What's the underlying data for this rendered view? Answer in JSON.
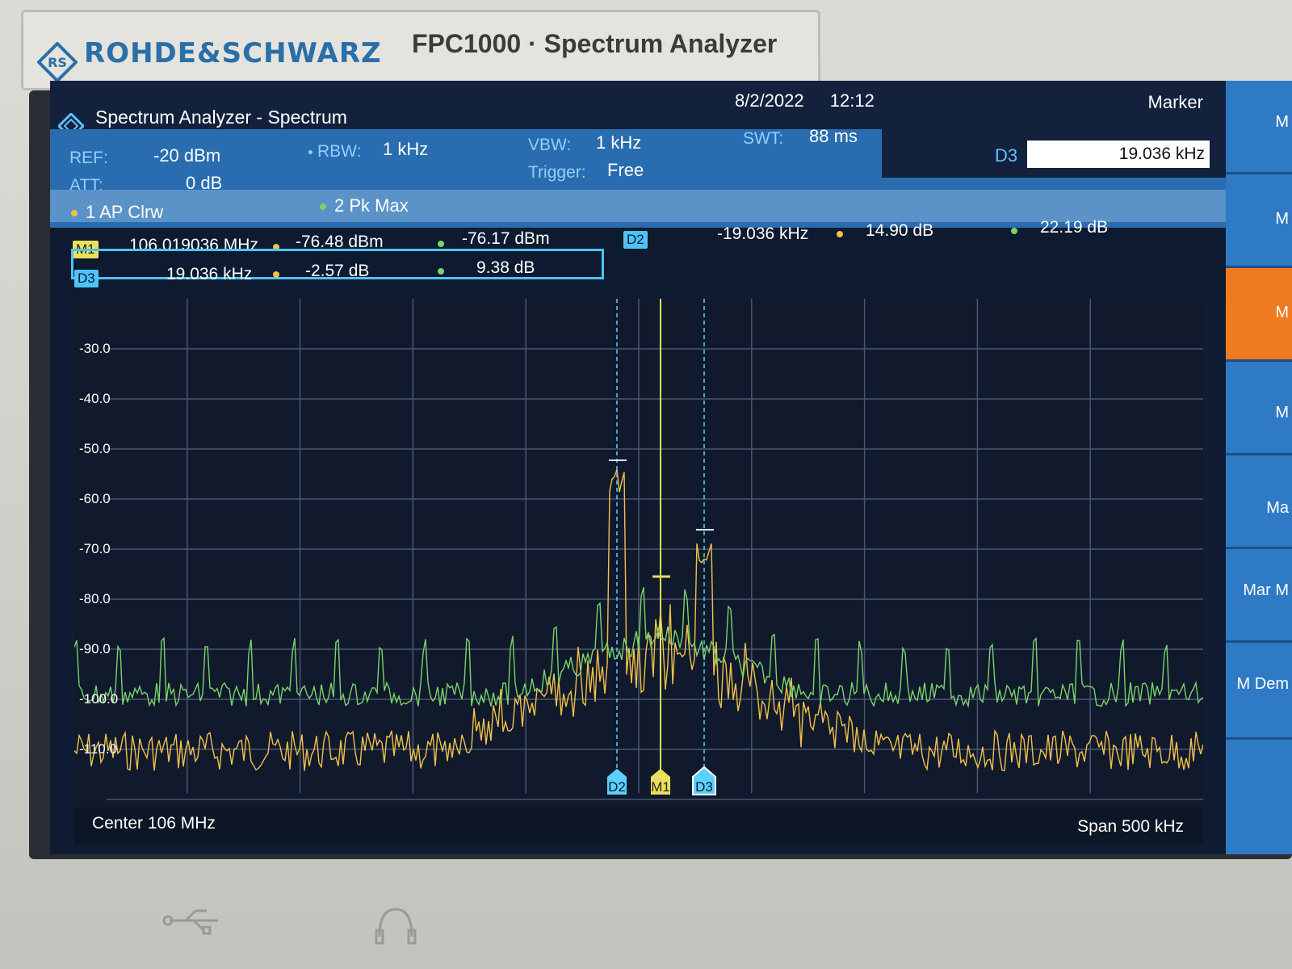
{
  "brand": {
    "name": "ROHDE&SCHWARZ",
    "model": "FPC1000 · Spectrum Analyzer"
  },
  "app": {
    "title": "Spectrum Analyzer - Spectrum",
    "date": "8/2/2022",
    "time": "12:12"
  },
  "params": {
    "ref_label": "REF:",
    "ref_value": "-20 dBm",
    "att_label": "ATT:",
    "att_value": "0 dB",
    "rbw_label": "RBW:",
    "rbw_value": "1 kHz",
    "vbw_label": "VBW:",
    "vbw_value": "1 kHz",
    "trigger_label": "Trigger:",
    "trigger_value": "Free",
    "swt_label": "SWT:",
    "swt_value": "88 ms"
  },
  "traces": [
    {
      "label": "1 AP Clrw",
      "color": "#f2c14a"
    },
    {
      "label": "2 Pk Max",
      "color": "#7ad36a"
    }
  ],
  "marker_panel": {
    "title": "Marker",
    "d3_label": "D3",
    "d3_value": "19.036 kHz"
  },
  "markers": [
    {
      "tag": "M1",
      "freq": "106.019036 MHz",
      "t1": "-76.48 dBm",
      "t2": "-76.17 dBm"
    },
    {
      "tag": "D3",
      "freq": "19.036 kHz",
      "t1": "-2.57 dB",
      "t2": "9.38 dB"
    },
    {
      "tag": "D2",
      "freq": "-19.036 kHz",
      "t1": "14.90 dB",
      "t2": "22.19 dB"
    }
  ],
  "y_axis": {
    "labels": [
      "-30.0",
      "-40.0",
      "-50.0",
      "-60.0",
      "-70.0",
      "-80.0",
      "-90.0",
      "-100.0",
      "-110.0"
    ]
  },
  "footer": {
    "center": "Center 106 MHz",
    "span": "Span 500 kHz"
  },
  "plot_markers": [
    "D2",
    "M1",
    "D3"
  ],
  "softkeys": [
    "M",
    "M",
    "M",
    "M",
    "Ma",
    "Mar M",
    "M Dem"
  ]
}
